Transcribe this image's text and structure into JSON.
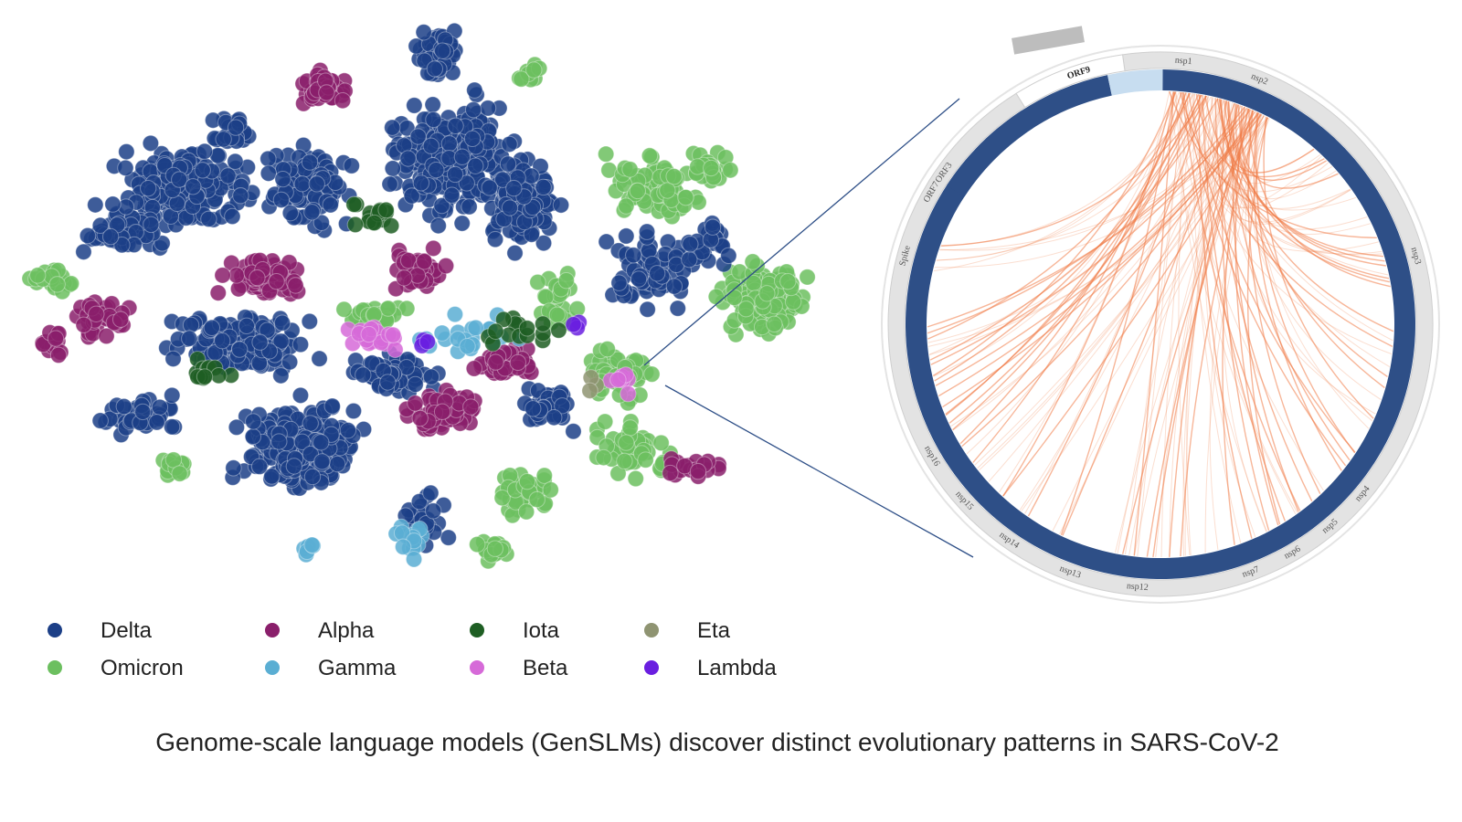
{
  "legend": [
    {
      "name": "Delta",
      "color": "#1c3f87"
    },
    {
      "name": "Omicron",
      "color": "#6cbf5f"
    },
    {
      "name": "Alpha",
      "color": "#8a1f6b"
    },
    {
      "name": "Gamma",
      "color": "#5aaed3"
    },
    {
      "name": "Iota",
      "color": "#1e5e23"
    },
    {
      "name": "Beta",
      "color": "#d66ad8"
    },
    {
      "name": "Eta",
      "color": "#8f9472"
    },
    {
      "name": "Lambda",
      "color": "#6a1ee0"
    }
  ],
  "chord": {
    "ring_color": "#2e4f87",
    "chord_color": "#f07a45",
    "segments": [
      "ORF9",
      "nsp1",
      "nsp2",
      "nsp3",
      "nsp4",
      "nsp5",
      "nsp6",
      "nsp7",
      "nsp12",
      "nsp13",
      "nsp14",
      "nsp15",
      "nsp16",
      "Spike",
      "ORF7",
      "ORF3"
    ]
  },
  "caption": "Genome-scale language models (GenSLMs) discover distinct evolutionary patterns in SARS-CoV-2"
}
